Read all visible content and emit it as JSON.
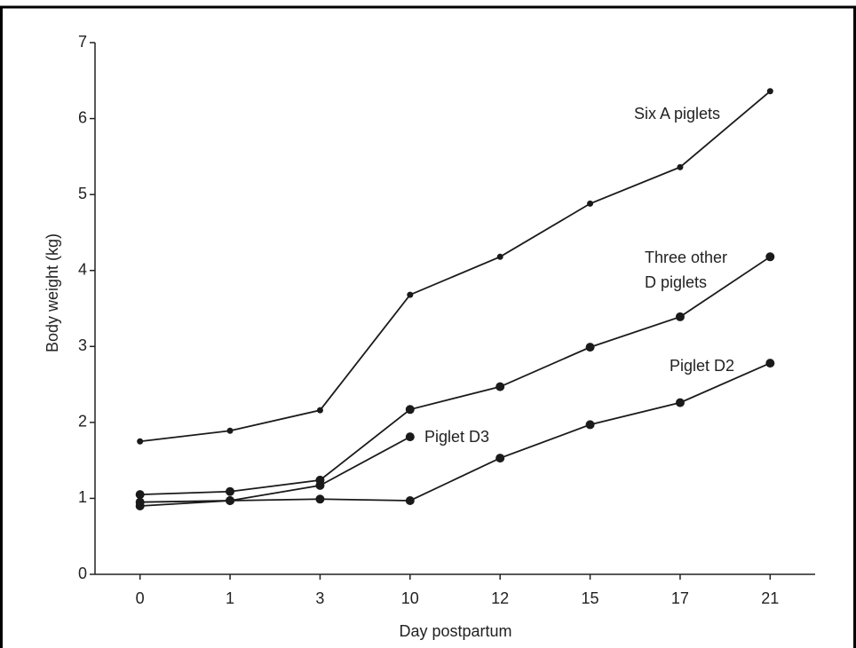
{
  "chart_data": {
    "type": "line",
    "x_label": "Day postpartum",
    "y_label": "Body weight (kg)",
    "categories": [
      "0",
      "1",
      "3",
      "10",
      "12",
      "15",
      "17",
      "21"
    ],
    "series": [
      {
        "name": "Six A piglets",
        "color": "#1a1a1a",
        "values": [
          1.75,
          1.89,
          2.16,
          3.68,
          4.18,
          4.88,
          5.36,
          6.36
        ]
      },
      {
        "name": "Three other D piglets",
        "color": "#1a1a1a",
        "values": [
          1.05,
          1.09,
          1.24,
          2.17,
          2.47,
          2.99,
          3.39,
          4.18
        ]
      },
      {
        "name": "Piglet D2",
        "color": "#1a1a1a",
        "values": [
          0.9,
          0.97,
          0.99,
          0.97,
          1.53,
          1.97,
          2.26,
          2.78
        ]
      },
      {
        "name": "Piglet D3",
        "color": "#1a1a1a",
        "values": [
          0.95,
          0.97,
          1.17,
          1.81,
          null,
          null,
          null,
          null
        ]
      }
    ],
    "ylim": [
      0,
      7
    ],
    "yticks": [
      0,
      1,
      2,
      3,
      4,
      5,
      6,
      7
    ],
    "grid": false
  }
}
